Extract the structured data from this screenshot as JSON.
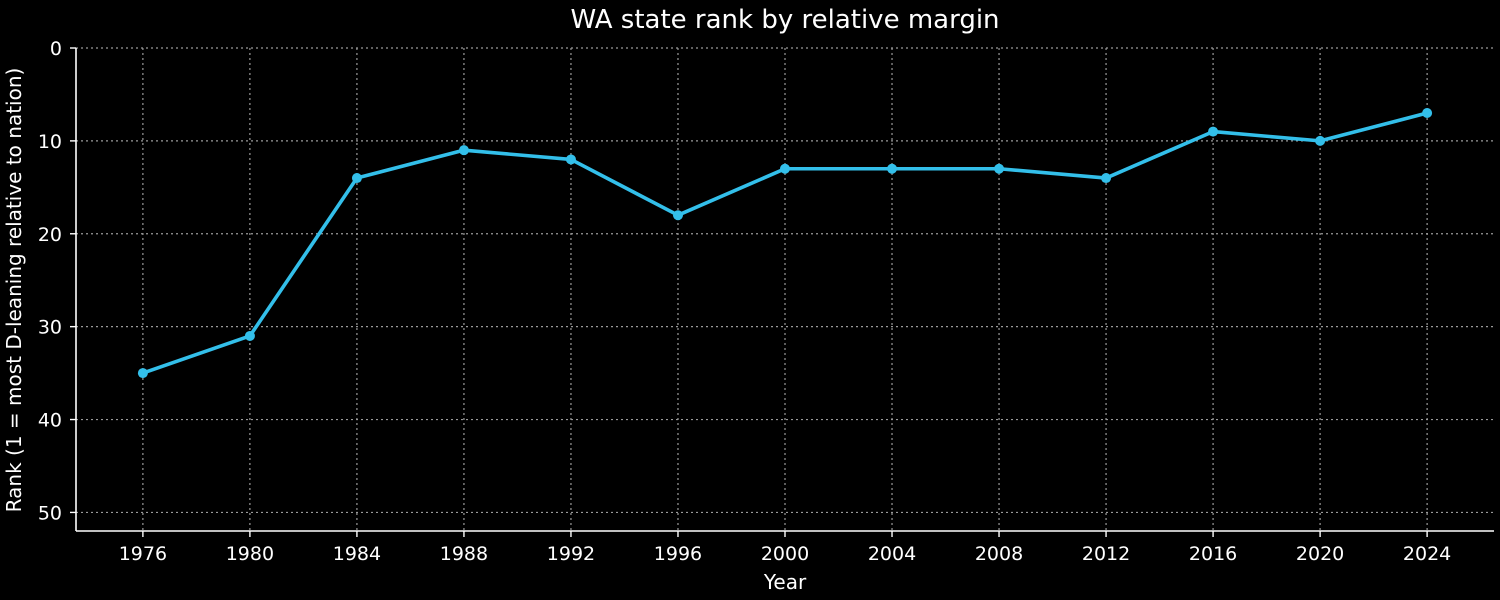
{
  "chart_data": {
    "type": "line",
    "title": "WA state rank by relative margin",
    "xlabel": "Year",
    "ylabel": "Rank (1 = most D-leaning relative to nation)",
    "x": [
      1976,
      1980,
      1984,
      1988,
      1992,
      1996,
      2000,
      2004,
      2008,
      2012,
      2016,
      2020,
      2024
    ],
    "series": [
      {
        "values": [
          35,
          31,
          14,
          11,
          12,
          18,
          13,
          13,
          13,
          14,
          9,
          10,
          7
        ]
      }
    ],
    "x_ticks": [
      "1976",
      "1980",
      "1984",
      "1988",
      "1992",
      "1996",
      "2000",
      "2004",
      "2008",
      "2012",
      "2016",
      "2020",
      "2024"
    ],
    "y_ticks": [
      "0",
      "10",
      "20",
      "30",
      "40",
      "50"
    ],
    "y_tick_values": [
      0,
      10,
      20,
      30,
      40,
      50
    ],
    "xlim": [
      1973.5,
      2026.5
    ],
    "ylim": [
      0,
      52
    ],
    "y_inverted": true,
    "grid": true,
    "legend": "none",
    "colors": {
      "background": "#000000",
      "line": "#33bfea",
      "grid": "#9a9a9a",
      "axis": "#ffffff",
      "text": "#ffffff"
    }
  }
}
